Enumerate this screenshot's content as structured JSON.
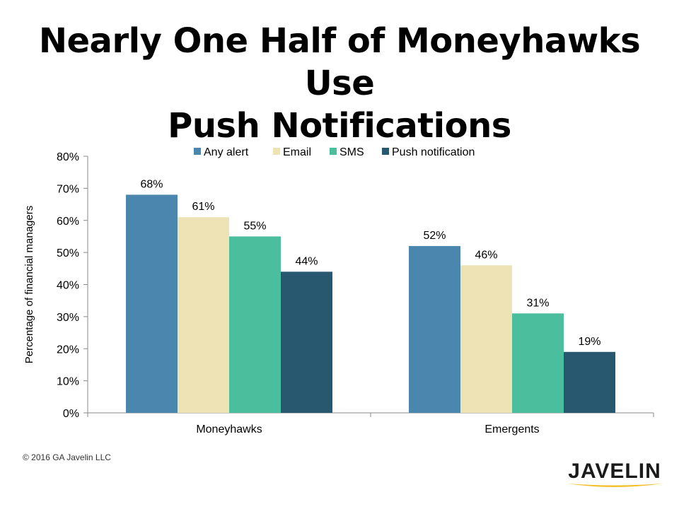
{
  "slide": {
    "title_line1": "Nearly One Half of Moneyhawks Use",
    "title_line2": "Push Notifications"
  },
  "footer": {
    "copyright": "© 2016 GA Javelin LLC",
    "logo_text": "JAVELIN"
  },
  "colors": {
    "any_alert": "#4A86AD",
    "email": "#EDE3B5",
    "sms": "#4BBE9E",
    "push": "#27586F",
    "axis": "#888888",
    "logo_swoosh": "#F2C12E"
  },
  "chart_data": {
    "type": "bar",
    "categories": [
      "Moneyhawks",
      "Emergents"
    ],
    "series": [
      {
        "name": "Any alert",
        "values": [
          68,
          52
        ],
        "labels": [
          "68%",
          "52%"
        ],
        "color": "#4A86AD"
      },
      {
        "name": "Email",
        "values": [
          61,
          46
        ],
        "labels": [
          "61%",
          "46%"
        ],
        "color": "#EDE3B5"
      },
      {
        "name": "SMS",
        "values": [
          55,
          31
        ],
        "labels": [
          "55%",
          "31%"
        ],
        "color": "#4BBE9E"
      },
      {
        "name": "Push notification",
        "values": [
          44,
          19
        ],
        "labels": [
          "44%",
          "19%"
        ],
        "color": "#27586F"
      }
    ],
    "ylabel": "Percentage of financial managers",
    "ylim": [
      0,
      80
    ],
    "yticks": [
      0,
      10,
      20,
      30,
      40,
      50,
      60,
      70,
      80
    ],
    "ytick_labels": [
      "0%",
      "10%",
      "20%",
      "30%",
      "40%",
      "50%",
      "60%",
      "70%",
      "80%"
    ],
    "grid": false,
    "legend_position": "top"
  }
}
